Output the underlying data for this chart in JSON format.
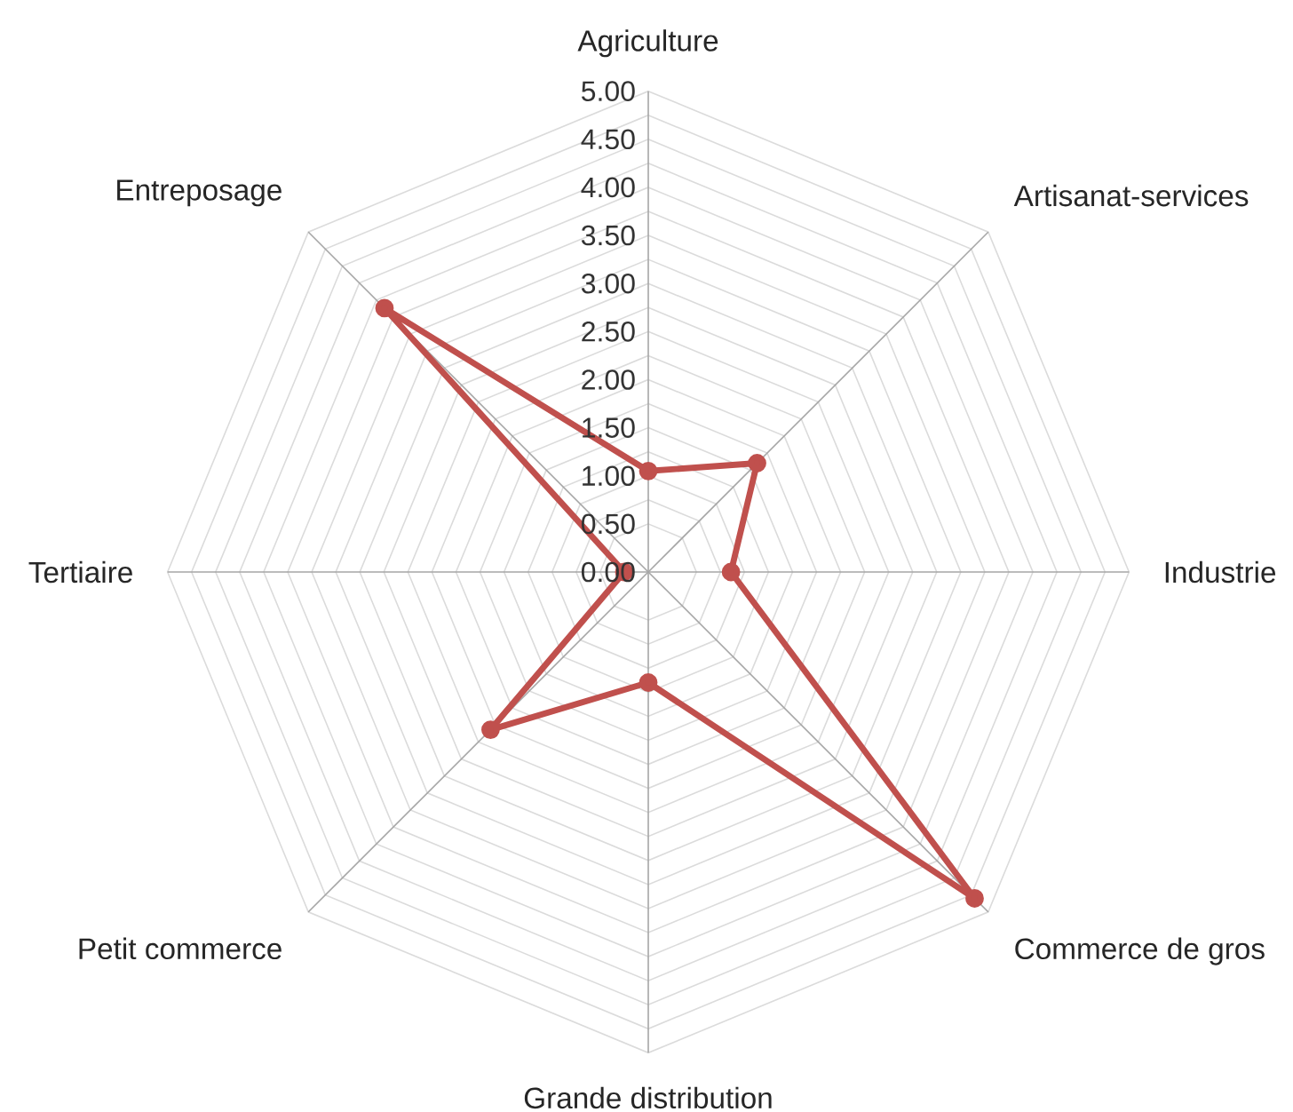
{
  "chart_data": {
    "type": "radar",
    "categories": [
      "Agriculture",
      "Artisanat-services",
      "Industrie",
      "Commerce de gros",
      "Grande distribution",
      "Petit commerce",
      "Tertiaire",
      "Entreposage"
    ],
    "series": [
      {
        "color": "#c0504d",
        "values": [
          1.05,
          1.6,
          0.86,
          4.8,
          1.15,
          2.32,
          0.25,
          3.88
        ]
      }
    ],
    "ylim": [
      0,
      5
    ],
    "yticks": [
      {
        "value": 0,
        "label": "0.00"
      },
      {
        "value": 0.5,
        "label": "0.50"
      },
      {
        "value": 1,
        "label": "1.00"
      },
      {
        "value": 1.5,
        "label": "1.50"
      },
      {
        "value": 2,
        "label": "2.00"
      },
      {
        "value": 2.5,
        "label": "2.50"
      },
      {
        "value": 3,
        "label": "3.00"
      },
      {
        "value": 3.5,
        "label": "3.50"
      },
      {
        "value": 4,
        "label": "4.00"
      },
      {
        "value": 4.5,
        "label": "4.50"
      },
      {
        "value": 5,
        "label": "5.00"
      }
    ],
    "grid": true,
    "marker": "circle",
    "line_style": "solid"
  }
}
